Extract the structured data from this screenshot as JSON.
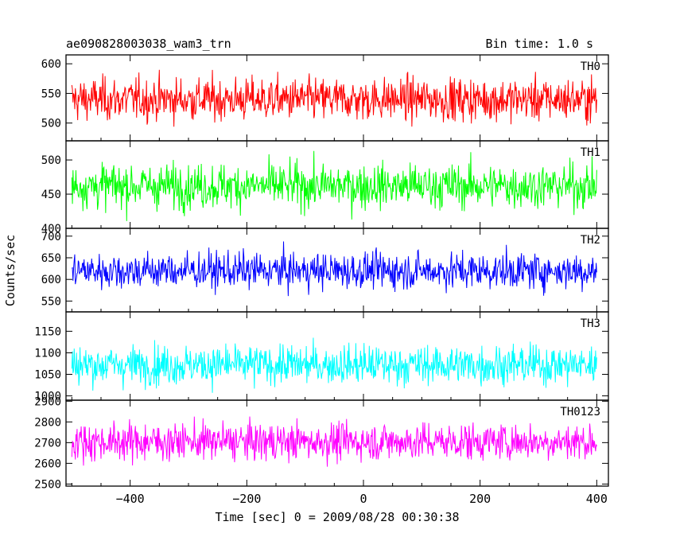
{
  "chart_data": {
    "type": "line",
    "title": "ae090828003038_wam3_trn",
    "subtitle": "Bin time: 1.0 s",
    "xlabel": "Time [sec] 0 = 2009/08/28 00:30:38",
    "ylabel": "Counts/sec",
    "xlim": [
      -510,
      420
    ],
    "x_data_range": [
      -500,
      400
    ],
    "x_ticks": [
      -400,
      -200,
      0,
      200,
      400
    ],
    "x_tick_labels": [
      "−400",
      "−200",
      "0",
      "200",
      "400"
    ],
    "bin_time_s": 1.0,
    "grid": false,
    "panels": [
      {
        "name": "TH0",
        "color": "#ff0000",
        "ylim": [
          470,
          615
        ],
        "yticks": [
          500,
          550,
          600
        ],
        "ytick_labels": [
          "500",
          "550",
          "600"
        ],
        "mean": 540,
        "amplitude": 30
      },
      {
        "name": "TH1",
        "color": "#00ff00",
        "ylim": [
          400,
          528
        ],
        "yticks": [
          400,
          450,
          500
        ],
        "ytick_labels": [
          "400",
          "450",
          "500"
        ],
        "mean": 462,
        "amplitude": 27
      },
      {
        "name": "TH2",
        "color": "#0000ff",
        "ylim": [
          525,
          718
        ],
        "yticks": [
          550,
          600,
          650,
          700
        ],
        "ytick_labels": [
          "550",
          "600",
          "650",
          "700"
        ],
        "mean": 620,
        "amplitude": 35
      },
      {
        "name": "TH3",
        "color": "#00ffff",
        "ylim": [
          990,
          1195
        ],
        "yticks": [
          1000,
          1050,
          1100,
          1150
        ],
        "ytick_labels": [
          "1000",
          "1050",
          "1100",
          "1150"
        ],
        "mean": 1072,
        "amplitude": 38
      },
      {
        "name": "TH0123",
        "color": "#ff00ff",
        "ylim": [
          2490,
          2905
        ],
        "yticks": [
          2500,
          2600,
          2700,
          2800,
          2900
        ],
        "ytick_labels": [
          "2500",
          "2600",
          "2700",
          "2800",
          "2900"
        ],
        "mean": 2705,
        "amplitude": 75
      }
    ]
  }
}
